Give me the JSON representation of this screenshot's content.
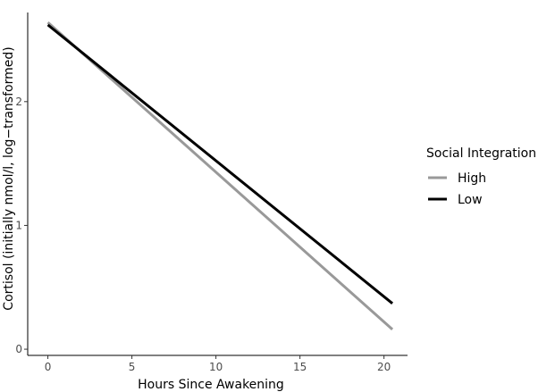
{
  "chart_data": {
    "type": "line",
    "xlabel": "Hours Since Awakening",
    "ylabel": "Cortisol (initially nmol/l, log−transformed)",
    "xlim": [
      -1.2,
      21.4
    ],
    "ylim": [
      -0.05,
      2.72
    ],
    "xticks": [
      0,
      5,
      10,
      15,
      20
    ],
    "yticks": [
      0,
      1,
      2
    ],
    "grid": false,
    "legend": {
      "title": "Social Integration",
      "position": "right"
    },
    "series": [
      {
        "name": "High",
        "color": "#999999",
        "x": [
          0,
          20.5
        ],
        "y": [
          2.64,
          0.16
        ]
      },
      {
        "name": "Low",
        "color": "#000000",
        "x": [
          0,
          20.5
        ],
        "y": [
          2.62,
          0.37
        ]
      }
    ]
  }
}
